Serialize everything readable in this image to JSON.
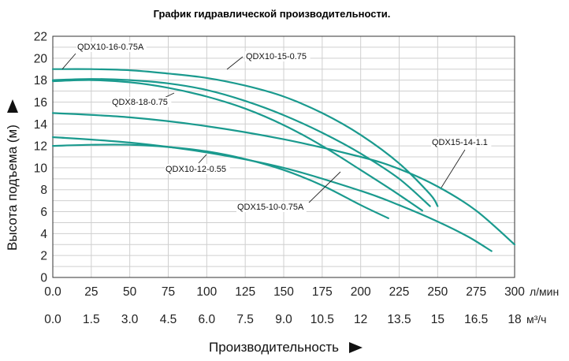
{
  "chart_data": {
    "type": "line",
    "title": "График гидравлической производительности.",
    "ylabel": "Высота подъема (м)",
    "xlabel": "Производительность",
    "x_unit_primary": "л/мин",
    "x_unit_secondary": "м³/ч",
    "xlim": [
      0,
      300
    ],
    "ylim": [
      0,
      22
    ],
    "grid": true,
    "x_ticks_primary": [
      "0.0",
      "25",
      "50",
      "75",
      "100",
      "125",
      "150",
      "175",
      "200",
      "225",
      "250",
      "275",
      "300"
    ],
    "x_ticks_secondary": [
      "0.0",
      "1.5",
      "3.0",
      "4.5",
      "6.0",
      "7.5",
      "9.0",
      "10.5",
      "12",
      "13.5",
      "15",
      "16.5",
      "18"
    ],
    "y_ticks": [
      "0",
      "2",
      "4",
      "6",
      "8",
      "10",
      "12",
      "14",
      "16",
      "18",
      "20",
      "22"
    ],
    "line_color": "#1a9a8e",
    "series": [
      {
        "name": "QDX10-16-0.75A",
        "x": [
          0,
          25,
          50,
          75,
          100,
          125,
          150,
          175,
          200,
          225,
          245,
          250
        ],
        "y": [
          19.0,
          19.0,
          18.9,
          18.6,
          18.2,
          17.5,
          16.5,
          15.0,
          13.0,
          10.4,
          7.6,
          6.5
        ]
      },
      {
        "name": "QDX10-15-0.75",
        "x": [
          0,
          25,
          50,
          75,
          100,
          125,
          150,
          175,
          200,
          225,
          245
        ],
        "y": [
          18.0,
          18.1,
          18.0,
          17.7,
          17.1,
          16.1,
          14.8,
          13.2,
          11.3,
          9.0,
          6.5
        ]
      },
      {
        "name": "QDX8-18-0.75",
        "x": [
          0,
          25,
          50,
          75,
          100,
          125,
          150,
          175,
          200,
          220,
          240
        ],
        "y": [
          17.9,
          18.0,
          17.8,
          17.3,
          16.5,
          15.4,
          13.9,
          12.0,
          9.8,
          8.0,
          6.1
        ]
      },
      {
        "name": "QDX15-14-1.1",
        "x": [
          0,
          50,
          100,
          150,
          200,
          225,
          250,
          275,
          300
        ],
        "y": [
          15.0,
          14.6,
          13.8,
          12.6,
          11.0,
          9.9,
          8.3,
          6.1,
          3.0
        ]
      },
      {
        "name": "QDX10-12-0.55",
        "x": [
          0,
          25,
          50,
          75,
          100,
          125,
          150,
          175,
          200,
          218
        ],
        "y": [
          12.0,
          12.1,
          12.1,
          11.9,
          11.5,
          10.8,
          9.8,
          8.4,
          6.6,
          5.4
        ]
      },
      {
        "name": "QDX15-10-0.75A",
        "x": [
          0,
          50,
          100,
          150,
          200,
          225,
          250,
          270,
          285
        ],
        "y": [
          12.8,
          12.3,
          11.4,
          10.0,
          7.9,
          6.6,
          5.1,
          3.7,
          2.4
        ]
      }
    ],
    "annotations": [
      {
        "text": "QDX10-16-0.75A",
        "series": "QDX10-16-0.75A"
      },
      {
        "text": "QDX10-15-0.75",
        "series": "QDX10-15-0.75"
      },
      {
        "text": "QDX8-18-0.75",
        "series": "QDX8-18-0.75"
      },
      {
        "text": "QDX15-14-1.1",
        "series": "QDX15-14-1.1"
      },
      {
        "text": "QDX10-12-0.55",
        "series": "QDX10-12-0.55"
      },
      {
        "text": "QDX15-10-0.75A",
        "series": "QDX15-10-0.75A"
      }
    ]
  }
}
